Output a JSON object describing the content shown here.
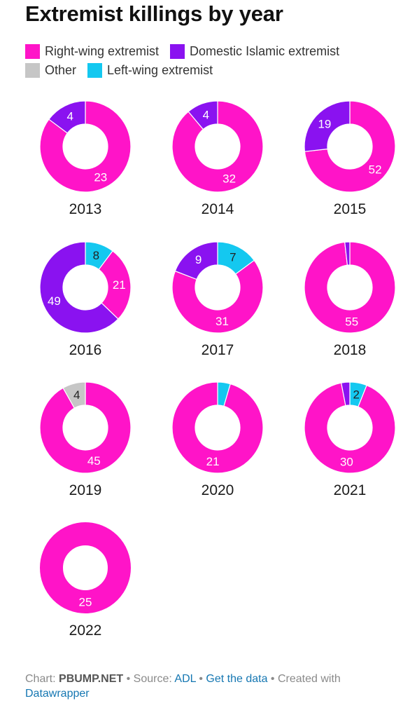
{
  "chart_data": {
    "type": "donut",
    "title": "Extremist killings by year",
    "legend": [
      {
        "name": "Right-wing extremist",
        "color": "#ff14c8"
      },
      {
        "name": "Domestic Islamic extremist",
        "color": "#8a12f0"
      },
      {
        "name": "Other",
        "color": "#c6c6c6"
      },
      {
        "name": "Left-wing extremist",
        "color": "#14c8f0"
      }
    ],
    "charts": [
      {
        "year": "2013",
        "slices": [
          {
            "series": "Right-wing extremist",
            "value": 23
          },
          {
            "series": "Domestic Islamic extremist",
            "value": 4
          }
        ]
      },
      {
        "year": "2014",
        "slices": [
          {
            "series": "Right-wing extremist",
            "value": 32
          },
          {
            "series": "Domestic Islamic extremist",
            "value": 4
          }
        ]
      },
      {
        "year": "2015",
        "slices": [
          {
            "series": "Right-wing extremist",
            "value": 52
          },
          {
            "series": "Domestic Islamic extremist",
            "value": 19
          }
        ]
      },
      {
        "year": "2016",
        "slices": [
          {
            "series": "Right-wing extremist",
            "value": 21
          },
          {
            "series": "Domestic Islamic extremist",
            "value": 49
          },
          {
            "series": "Left-wing extremist",
            "value": 8
          }
        ]
      },
      {
        "year": "2017",
        "slices": [
          {
            "series": "Right-wing extremist",
            "value": 31
          },
          {
            "series": "Domestic Islamic extremist",
            "value": 9
          },
          {
            "series": "Left-wing extremist",
            "value": 7
          }
        ]
      },
      {
        "year": "2018",
        "slices": [
          {
            "series": "Right-wing extremist",
            "value": 55
          },
          {
            "series": "Domestic Islamic extremist",
            "value": 1
          }
        ]
      },
      {
        "year": "2019",
        "slices": [
          {
            "series": "Right-wing extremist",
            "value": 45
          },
          {
            "series": "Other",
            "value": 4
          }
        ]
      },
      {
        "year": "2020",
        "slices": [
          {
            "series": "Right-wing extremist",
            "value": 21
          },
          {
            "series": "Left-wing extremist",
            "value": 1
          }
        ]
      },
      {
        "year": "2021",
        "slices": [
          {
            "series": "Right-wing extremist",
            "value": 30
          },
          {
            "series": "Domestic Islamic extremist",
            "value": 1
          },
          {
            "series": "Left-wing extremist",
            "value": 2
          }
        ]
      },
      {
        "year": "2022",
        "slices": [
          {
            "series": "Right-wing extremist",
            "value": 25
          }
        ]
      }
    ]
  },
  "footer": {
    "chart_prefix": "Chart: ",
    "chart_by": "PBUMP.NET",
    "source_prefix": " • Source: ",
    "source": "ADL",
    "sep": " • ",
    "get_data": "Get the data",
    "created_prefix": " • Created with ",
    "created_with": "Datawrapper"
  }
}
